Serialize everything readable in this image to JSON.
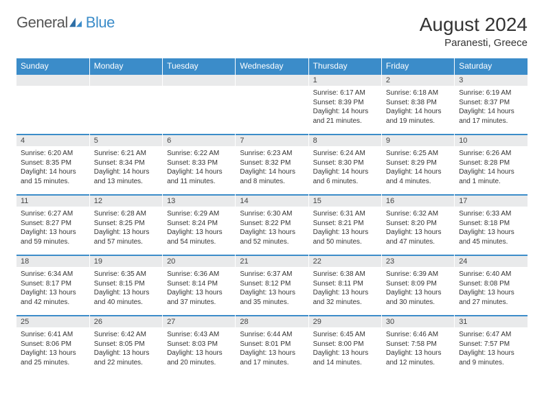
{
  "logo": {
    "part1": "General",
    "part2": "Blue",
    "text_color": "#555555",
    "accent_color": "#3b8cc9"
  },
  "header": {
    "title": "August 2024",
    "location": "Paranesti, Greece"
  },
  "colors": {
    "header_bg": "#3b8cc9",
    "header_text": "#ffffff",
    "daynum_bg": "#e9eaeb",
    "row_border": "#3b8cc9",
    "body_text": "#333333"
  },
  "weekdays": [
    "Sunday",
    "Monday",
    "Tuesday",
    "Wednesday",
    "Thursday",
    "Friday",
    "Saturday"
  ],
  "weeks": [
    [
      null,
      null,
      null,
      null,
      {
        "n": "1",
        "sunrise": "6:17 AM",
        "sunset": "8:39 PM",
        "daylight": "14 hours and 21 minutes."
      },
      {
        "n": "2",
        "sunrise": "6:18 AM",
        "sunset": "8:38 PM",
        "daylight": "14 hours and 19 minutes."
      },
      {
        "n": "3",
        "sunrise": "6:19 AM",
        "sunset": "8:37 PM",
        "daylight": "14 hours and 17 minutes."
      }
    ],
    [
      {
        "n": "4",
        "sunrise": "6:20 AM",
        "sunset": "8:35 PM",
        "daylight": "14 hours and 15 minutes."
      },
      {
        "n": "5",
        "sunrise": "6:21 AM",
        "sunset": "8:34 PM",
        "daylight": "14 hours and 13 minutes."
      },
      {
        "n": "6",
        "sunrise": "6:22 AM",
        "sunset": "8:33 PM",
        "daylight": "14 hours and 11 minutes."
      },
      {
        "n": "7",
        "sunrise": "6:23 AM",
        "sunset": "8:32 PM",
        "daylight": "14 hours and 8 minutes."
      },
      {
        "n": "8",
        "sunrise": "6:24 AM",
        "sunset": "8:30 PM",
        "daylight": "14 hours and 6 minutes."
      },
      {
        "n": "9",
        "sunrise": "6:25 AM",
        "sunset": "8:29 PM",
        "daylight": "14 hours and 4 minutes."
      },
      {
        "n": "10",
        "sunrise": "6:26 AM",
        "sunset": "8:28 PM",
        "daylight": "14 hours and 1 minute."
      }
    ],
    [
      {
        "n": "11",
        "sunrise": "6:27 AM",
        "sunset": "8:27 PM",
        "daylight": "13 hours and 59 minutes."
      },
      {
        "n": "12",
        "sunrise": "6:28 AM",
        "sunset": "8:25 PM",
        "daylight": "13 hours and 57 minutes."
      },
      {
        "n": "13",
        "sunrise": "6:29 AM",
        "sunset": "8:24 PM",
        "daylight": "13 hours and 54 minutes."
      },
      {
        "n": "14",
        "sunrise": "6:30 AM",
        "sunset": "8:22 PM",
        "daylight": "13 hours and 52 minutes."
      },
      {
        "n": "15",
        "sunrise": "6:31 AM",
        "sunset": "8:21 PM",
        "daylight": "13 hours and 50 minutes."
      },
      {
        "n": "16",
        "sunrise": "6:32 AM",
        "sunset": "8:20 PM",
        "daylight": "13 hours and 47 minutes."
      },
      {
        "n": "17",
        "sunrise": "6:33 AM",
        "sunset": "8:18 PM",
        "daylight": "13 hours and 45 minutes."
      }
    ],
    [
      {
        "n": "18",
        "sunrise": "6:34 AM",
        "sunset": "8:17 PM",
        "daylight": "13 hours and 42 minutes."
      },
      {
        "n": "19",
        "sunrise": "6:35 AM",
        "sunset": "8:15 PM",
        "daylight": "13 hours and 40 minutes."
      },
      {
        "n": "20",
        "sunrise": "6:36 AM",
        "sunset": "8:14 PM",
        "daylight": "13 hours and 37 minutes."
      },
      {
        "n": "21",
        "sunrise": "6:37 AM",
        "sunset": "8:12 PM",
        "daylight": "13 hours and 35 minutes."
      },
      {
        "n": "22",
        "sunrise": "6:38 AM",
        "sunset": "8:11 PM",
        "daylight": "13 hours and 32 minutes."
      },
      {
        "n": "23",
        "sunrise": "6:39 AM",
        "sunset": "8:09 PM",
        "daylight": "13 hours and 30 minutes."
      },
      {
        "n": "24",
        "sunrise": "6:40 AM",
        "sunset": "8:08 PM",
        "daylight": "13 hours and 27 minutes."
      }
    ],
    [
      {
        "n": "25",
        "sunrise": "6:41 AM",
        "sunset": "8:06 PM",
        "daylight": "13 hours and 25 minutes."
      },
      {
        "n": "26",
        "sunrise": "6:42 AM",
        "sunset": "8:05 PM",
        "daylight": "13 hours and 22 minutes."
      },
      {
        "n": "27",
        "sunrise": "6:43 AM",
        "sunset": "8:03 PM",
        "daylight": "13 hours and 20 minutes."
      },
      {
        "n": "28",
        "sunrise": "6:44 AM",
        "sunset": "8:01 PM",
        "daylight": "13 hours and 17 minutes."
      },
      {
        "n": "29",
        "sunrise": "6:45 AM",
        "sunset": "8:00 PM",
        "daylight": "13 hours and 14 minutes."
      },
      {
        "n": "30",
        "sunrise": "6:46 AM",
        "sunset": "7:58 PM",
        "daylight": "13 hours and 12 minutes."
      },
      {
        "n": "31",
        "sunrise": "6:47 AM",
        "sunset": "7:57 PM",
        "daylight": "13 hours and 9 minutes."
      }
    ]
  ],
  "labels": {
    "sunrise": "Sunrise:",
    "sunset": "Sunset:",
    "daylight": "Daylight:"
  }
}
